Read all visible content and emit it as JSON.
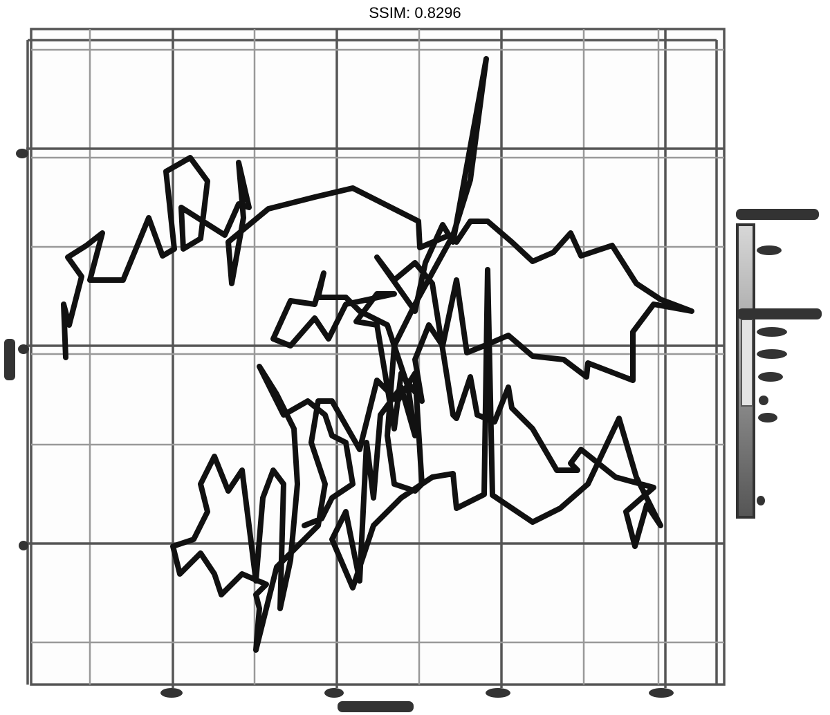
{
  "title": "SSIM: 0.8296"
}
